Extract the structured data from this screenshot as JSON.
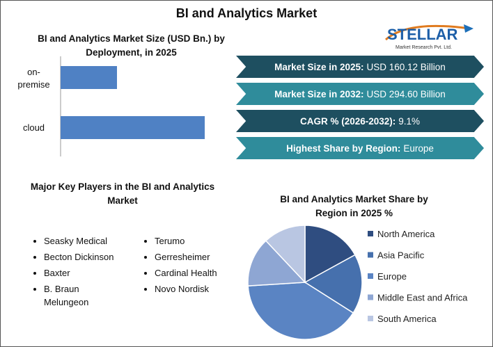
{
  "title": "BI and Analytics Market",
  "logo": {
    "name": "STELLAR",
    "tagline": "Market Research Pvt. Ltd."
  },
  "chart_data": [
    {
      "type": "hbar",
      "title": "BI and Analytics Market Size (USD Bn.) by Deployment, in 2025",
      "categories": [
        "on-premise",
        "cloud"
      ],
      "values": [
        45,
        115
      ],
      "color": "#4f81c4"
    },
    {
      "type": "pie",
      "title": "BI and Analytics Market Share by Region in 2025 %",
      "categories": [
        "North America",
        "Asia Pacific",
        "Europe",
        "Middle East and Africa",
        "South America"
      ],
      "values": [
        17,
        17,
        40,
        14,
        12
      ],
      "colors": [
        "#2f4d80",
        "#4670ad",
        "#5a84c3",
        "#8ea6d3",
        "#b9c6e2"
      ]
    }
  ],
  "stats": [
    {
      "label": "Market Size in 2025:",
      "value": "USD 160.12 Billion"
    },
    {
      "label": "Market Size in 2032:",
      "value": "USD 294.60 Billion"
    },
    {
      "label": "CAGR % (2026-2032):",
      "value": "9.1%"
    },
    {
      "label": "Highest Share by Region:",
      "value": "Europe"
    }
  ],
  "key_players": {
    "title": "Major Key Players in the BI and Analytics Market",
    "columns": [
      [
        "Seasky Medical",
        "Becton Dickinson",
        "Baxter",
        "B. Braun Melungeon"
      ],
      [
        "Terumo",
        "Gerresheimer",
        "Cardinal Health",
        "Novo Nordisk"
      ]
    ]
  }
}
